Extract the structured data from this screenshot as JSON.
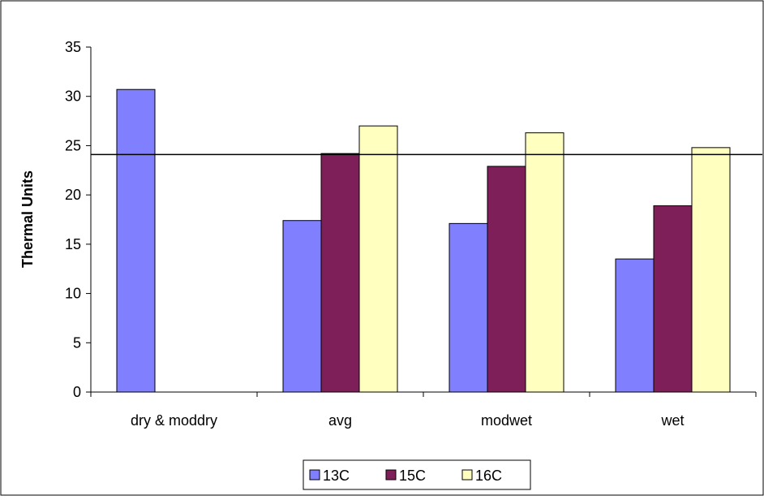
{
  "chart_data": {
    "type": "bar",
    "title": "",
    "xlabel": "",
    "ylabel": "Thermal Units",
    "ylim": [
      0,
      35
    ],
    "yticks": [
      0,
      5,
      10,
      15,
      20,
      25,
      30,
      35
    ],
    "grid": false,
    "legend_position": "bottom",
    "categories": [
      "dry & moddry",
      "avg",
      "modwet",
      "wet"
    ],
    "series": [
      {
        "name": "13C",
        "color": "#8080ff",
        "values": [
          30.7,
          17.4,
          17.1,
          13.5
        ]
      },
      {
        "name": "15C",
        "color": "#7f1f5a",
        "values": [
          null,
          24.2,
          22.9,
          18.9
        ]
      },
      {
        "name": "16C",
        "color": "#ffffc0",
        "values": [
          null,
          27.0,
          26.3,
          24.8
        ]
      }
    ],
    "reference_line": {
      "value": 24.1,
      "color": "#000000"
    }
  }
}
